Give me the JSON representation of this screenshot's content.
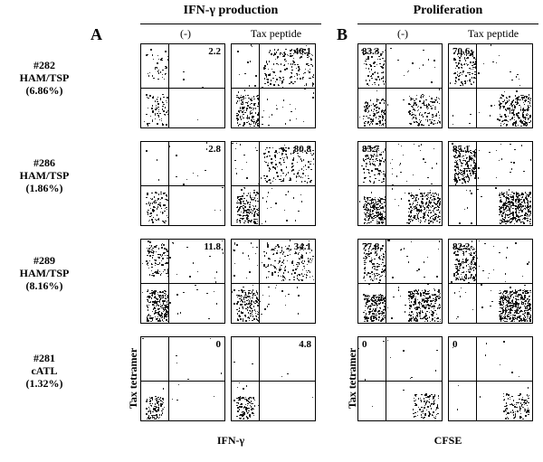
{
  "background_color": "#ffffff",
  "headers": {
    "ifn": "IFN-γ production",
    "prolif": "Proliferation",
    "A": "A",
    "B": "B",
    "cond_neg": "(-)",
    "cond_tax": "Tax peptide"
  },
  "axes": {
    "y_label": "Tax tetramer",
    "x_label_A": "IFN-γ",
    "x_label_B": "CFSE"
  },
  "samples": [
    {
      "id": "#282",
      "dx": "HAM/TSP",
      "pct": "(6.86%)",
      "cells": [
        {
          "pos": "UR",
          "val": "2.2",
          "dens": "lo",
          "cluster": "BL+UL"
        },
        {
          "pos": "UR",
          "val": "40.1",
          "dens": "med",
          "cluster": "spread"
        },
        {
          "pos": "UL",
          "val": "83.3",
          "dens": "med",
          "cluster": "BL+BR+UL"
        },
        {
          "pos": "UL",
          "val": "70.6",
          "dens": "med",
          "cluster": "BR+UL"
        }
      ]
    },
    {
      "id": "#286",
      "dx": "HAM/TSP",
      "pct": "(1.86%)",
      "cells": [
        {
          "pos": "UR",
          "val": "2.8",
          "dens": "lo",
          "cluster": "BL"
        },
        {
          "pos": "UR",
          "val": "80.8",
          "dens": "med",
          "cluster": "spread"
        },
        {
          "pos": "UL",
          "val": "85.7",
          "dens": "hi",
          "cluster": "BL+BR+UL"
        },
        {
          "pos": "UL",
          "val": "85.1",
          "dens": "hi",
          "cluster": "BR+UL"
        }
      ]
    },
    {
      "id": "#289",
      "dx": "HAM/TSP",
      "pct": "(8.16%)",
      "cells": [
        {
          "pos": "UR",
          "val": "11.8",
          "dens": "med",
          "cluster": "BL+UL"
        },
        {
          "pos": "UR",
          "val": "34.1",
          "dens": "med",
          "cluster": "spread"
        },
        {
          "pos": "UL",
          "val": "77.8",
          "dens": "hi",
          "cluster": "BL+BR+UL"
        },
        {
          "pos": "UL",
          "val": "82.2",
          "dens": "hi",
          "cluster": "BR+UL"
        }
      ]
    },
    {
      "id": "#281",
      "dx": "cATL",
      "pct": "(1.32%)",
      "cells": [
        {
          "pos": "UR",
          "val": "0",
          "dens": "lo",
          "cluster": "BLsmall"
        },
        {
          "pos": "UR",
          "val": "4.8",
          "dens": "lo",
          "cluster": "BLsmall"
        },
        {
          "pos": "UL",
          "val": "0",
          "dens": "lo",
          "cluster": "BRsmall"
        },
        {
          "pos": "UL",
          "val": "0",
          "dens": "lo",
          "cluster": "BRsmall"
        }
      ]
    }
  ],
  "dot_color": "#000000",
  "n_dots": {
    "lo": 120,
    "med": 380,
    "hi": 650
  }
}
